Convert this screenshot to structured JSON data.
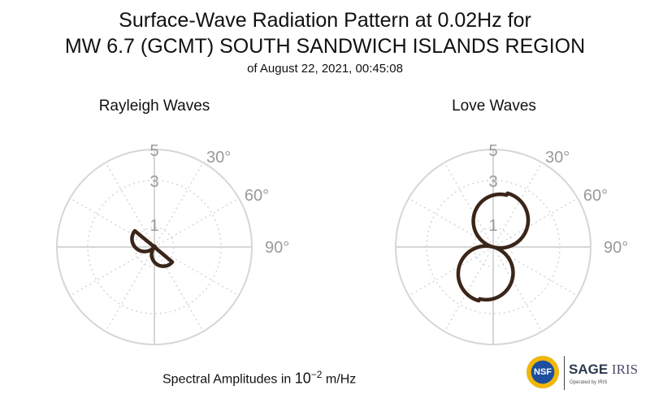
{
  "header": {
    "title_line1": "Surface-Wave Radiation Pattern at 0.02Hz for",
    "title_line2": "MW 6.7 (GCMT) SOUTH SANDWICH ISLANDS REGION",
    "title_line3": "of August 22, 2021, 00:45:08"
  },
  "footer": {
    "prefix": "Spectral Amplitudes in ",
    "base": "10",
    "exponent": "−2",
    "unit": " m/Hz"
  },
  "logos": {
    "nsf": "NSF",
    "sage": "SAGE",
    "iris": "IRIS",
    "operated": "Operated by IRIS"
  },
  "colors": {
    "pattern": "#3a2519",
    "grid": "#d6d6d6",
    "label": "#9a9a9a"
  },
  "chart_data": [
    {
      "type": "polar",
      "title": "Rayleigh Waves",
      "r_ticks": [
        "1",
        "3",
        "5"
      ],
      "angle_ticks": [
        "30°",
        "60°",
        "90°"
      ],
      "rlim": [
        0,
        5
      ],
      "pattern": {
        "form": "four-lobe",
        "lobe_amplitudes": [
          1.2,
          1.3,
          0.04,
          0.04
        ],
        "lobe_axis_deg": 130
      }
    },
    {
      "type": "polar",
      "title": "Love Waves",
      "r_ticks": [
        "1",
        "3",
        "5"
      ],
      "angle_ticks": [
        "30°",
        "60°",
        "90°"
      ],
      "rlim": [
        0,
        5
      ],
      "pattern": {
        "form": "four-lobe",
        "lobe_amplitudes": [
          2.85,
          2.75,
          2.85,
          2.75
        ],
        "lobe_axis_deg": 15
      }
    }
  ]
}
